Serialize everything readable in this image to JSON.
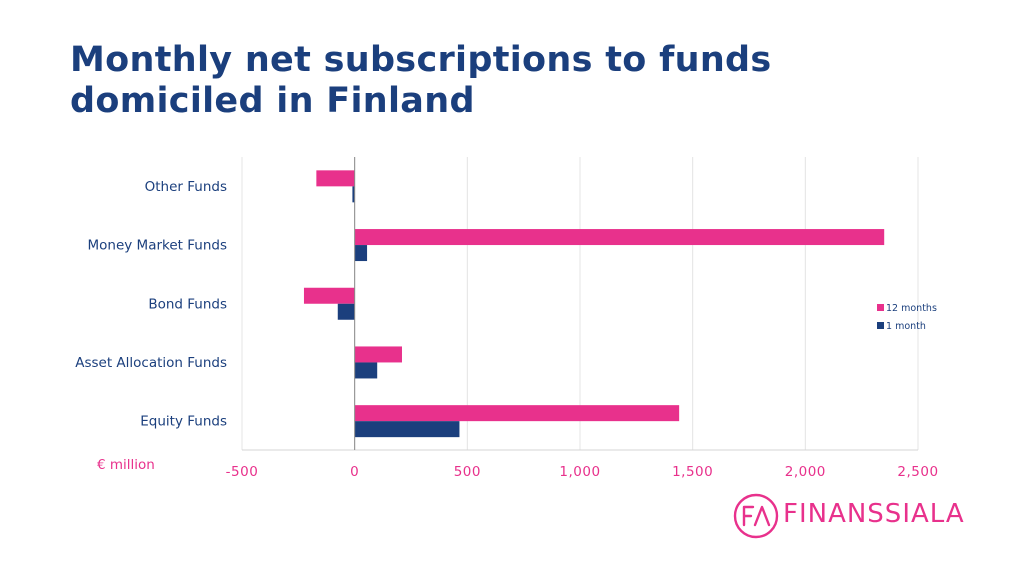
{
  "title": "Monthly net subscriptions to funds domiciled in Finland",
  "unit_label": "€ million",
  "logo": {
    "text": "FINANSSIALA",
    "mark": "FA"
  },
  "colors": {
    "series_12m": "#e8318c",
    "series_1m": "#1b3f7d",
    "title": "#1b3f7d",
    "grid": "#e4e4e4",
    "axis": "#8a8a8a"
  },
  "chart_data": {
    "type": "bar",
    "orientation": "horizontal",
    "categories": [
      "Other Funds",
      "Money Market Funds",
      "Bond Funds",
      "Asset Allocation Funds",
      "Equity Funds"
    ],
    "series": [
      {
        "name": "12 months",
        "color": "#e8318c",
        "values": [
          -170,
          2350,
          -225,
          210,
          1440
        ]
      },
      {
        "name": "1 month",
        "color": "#1b3f7d",
        "values": [
          -10,
          55,
          -75,
          100,
          465
        ]
      }
    ],
    "x_ticks": [
      "-500",
      "0",
      "500",
      "1,000",
      "1,500",
      "2,000",
      "2,500"
    ],
    "x_tick_values": [
      -500,
      0,
      500,
      1000,
      1500,
      2000,
      2500
    ],
    "xlim": [
      -500,
      2500
    ],
    "grid": true,
    "legend_position": "right"
  }
}
